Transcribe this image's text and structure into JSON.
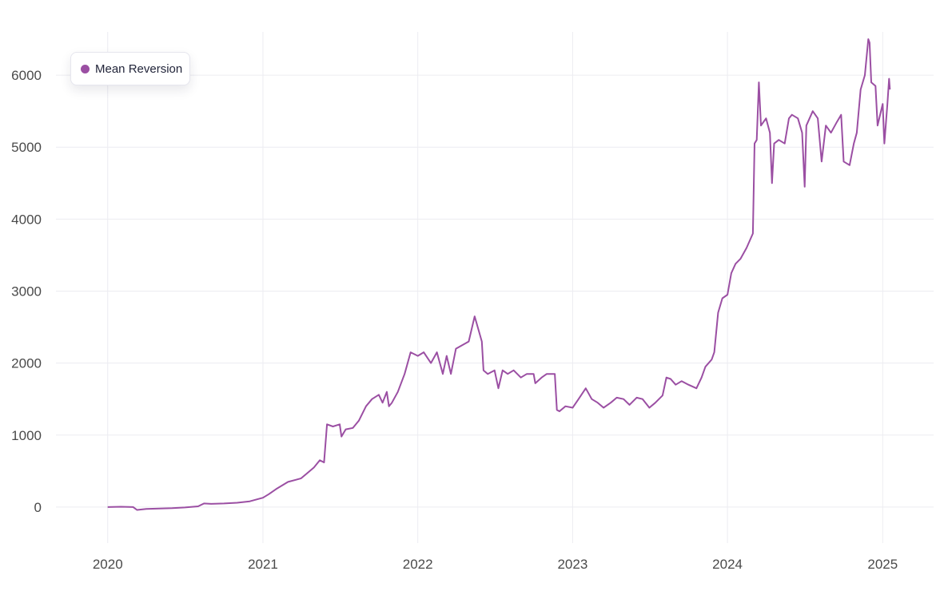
{
  "chart_data": {
    "type": "line",
    "title": "",
    "xlabel": "",
    "ylabel": "",
    "x_ticks": [
      "2020",
      "2021",
      "2022",
      "2023",
      "2024",
      "2025"
    ],
    "y_ticks": [
      0,
      1000,
      2000,
      3000,
      4000,
      5000,
      6000
    ],
    "xlim": [
      "2019-09-01",
      "2025-05-01"
    ],
    "ylim": [
      -500,
      6600
    ],
    "grid": true,
    "legend_position": "top-left",
    "series": [
      {
        "name": "Mean Reversion",
        "color": "#9b4fa3",
        "points": [
          [
            "2020-01-01",
            0
          ],
          [
            "2020-02-01",
            5
          ],
          [
            "2020-03-01",
            0
          ],
          [
            "2020-03-10",
            -40
          ],
          [
            "2020-04-01",
            -25
          ],
          [
            "2020-05-01",
            -20
          ],
          [
            "2020-06-01",
            -15
          ],
          [
            "2020-07-01",
            -5
          ],
          [
            "2020-08-01",
            10
          ],
          [
            "2020-08-15",
            50
          ],
          [
            "2020-09-01",
            45
          ],
          [
            "2020-10-01",
            50
          ],
          [
            "2020-11-01",
            60
          ],
          [
            "2020-12-01",
            80
          ],
          [
            "2021-01-01",
            130
          ],
          [
            "2021-01-15",
            180
          ],
          [
            "2021-02-01",
            250
          ],
          [
            "2021-03-01",
            350
          ],
          [
            "2021-03-20",
            380
          ],
          [
            "2021-04-01",
            400
          ],
          [
            "2021-05-01",
            550
          ],
          [
            "2021-05-15",
            650
          ],
          [
            "2021-05-25",
            620
          ],
          [
            "2021-06-01",
            1150
          ],
          [
            "2021-06-15",
            1120
          ],
          [
            "2021-07-01",
            1150
          ],
          [
            "2021-07-05",
            980
          ],
          [
            "2021-07-15",
            1080
          ],
          [
            "2021-08-01",
            1100
          ],
          [
            "2021-08-15",
            1200
          ],
          [
            "2021-09-01",
            1400
          ],
          [
            "2021-09-15",
            1500
          ],
          [
            "2021-10-01",
            1560
          ],
          [
            "2021-10-10",
            1450
          ],
          [
            "2021-10-20",
            1600
          ],
          [
            "2021-10-25",
            1400
          ],
          [
            "2021-11-01",
            1450
          ],
          [
            "2021-11-15",
            1600
          ],
          [
            "2021-12-01",
            1850
          ],
          [
            "2021-12-15",
            2150
          ],
          [
            "2022-01-01",
            2100
          ],
          [
            "2022-01-15",
            2150
          ],
          [
            "2022-02-01",
            2000
          ],
          [
            "2022-02-15",
            2150
          ],
          [
            "2022-03-01",
            1850
          ],
          [
            "2022-03-10",
            2100
          ],
          [
            "2022-03-20",
            1850
          ],
          [
            "2022-04-01",
            2200
          ],
          [
            "2022-05-01",
            2300
          ],
          [
            "2022-05-15",
            2650
          ],
          [
            "2022-05-20",
            2550
          ],
          [
            "2022-06-01",
            2300
          ],
          [
            "2022-06-05",
            1900
          ],
          [
            "2022-06-15",
            1850
          ],
          [
            "2022-07-01",
            1900
          ],
          [
            "2022-07-10",
            1650
          ],
          [
            "2022-07-20",
            1900
          ],
          [
            "2022-08-01",
            1850
          ],
          [
            "2022-08-15",
            1900
          ],
          [
            "2022-09-01",
            1800
          ],
          [
            "2022-09-15",
            1850
          ],
          [
            "2022-10-01",
            1850
          ],
          [
            "2022-10-05",
            1720
          ],
          [
            "2022-10-20",
            1800
          ],
          [
            "2022-11-01",
            1850
          ],
          [
            "2022-11-20",
            1850
          ],
          [
            "2022-11-25",
            1350
          ],
          [
            "2022-12-01",
            1330
          ],
          [
            "2022-12-15",
            1400
          ],
          [
            "2023-01-01",
            1380
          ],
          [
            "2023-01-15",
            1500
          ],
          [
            "2023-02-01",
            1650
          ],
          [
            "2023-02-15",
            1500
          ],
          [
            "2023-03-01",
            1450
          ],
          [
            "2023-03-15",
            1380
          ],
          [
            "2023-04-01",
            1450
          ],
          [
            "2023-04-15",
            1520
          ],
          [
            "2023-05-01",
            1500
          ],
          [
            "2023-05-15",
            1420
          ],
          [
            "2023-06-01",
            1520
          ],
          [
            "2023-06-15",
            1500
          ],
          [
            "2023-07-01",
            1380
          ],
          [
            "2023-07-15",
            1450
          ],
          [
            "2023-08-01",
            1550
          ],
          [
            "2023-08-10",
            1800
          ],
          [
            "2023-08-20",
            1780
          ],
          [
            "2023-09-01",
            1700
          ],
          [
            "2023-09-15",
            1750
          ],
          [
            "2023-10-01",
            1700
          ],
          [
            "2023-10-20",
            1650
          ],
          [
            "2023-11-01",
            1800
          ],
          [
            "2023-11-10",
            1950
          ],
          [
            "2023-11-25",
            2050
          ],
          [
            "2023-12-01",
            2150
          ],
          [
            "2023-12-10",
            2700
          ],
          [
            "2023-12-20",
            2900
          ],
          [
            "2024-01-01",
            2950
          ],
          [
            "2024-01-10",
            3250
          ],
          [
            "2024-01-20",
            3380
          ],
          [
            "2024-02-01",
            3450
          ],
          [
            "2024-02-15",
            3600
          ],
          [
            "2024-03-01",
            3800
          ],
          [
            "2024-03-05",
            5050
          ],
          [
            "2024-03-10",
            5100
          ],
          [
            "2024-03-15",
            5900
          ],
          [
            "2024-03-20",
            5300
          ],
          [
            "2024-04-01",
            5400
          ],
          [
            "2024-04-10",
            5200
          ],
          [
            "2024-04-15",
            4500
          ],
          [
            "2024-04-20",
            5050
          ],
          [
            "2024-05-01",
            5100
          ],
          [
            "2024-05-15",
            5050
          ],
          [
            "2024-05-25",
            5400
          ],
          [
            "2024-06-01",
            5450
          ],
          [
            "2024-06-15",
            5400
          ],
          [
            "2024-06-25",
            5200
          ],
          [
            "2024-07-01",
            4450
          ],
          [
            "2024-07-05",
            5300
          ],
          [
            "2024-07-20",
            5500
          ],
          [
            "2024-08-01",
            5400
          ],
          [
            "2024-08-10",
            4800
          ],
          [
            "2024-08-20",
            5300
          ],
          [
            "2024-09-01",
            5200
          ],
          [
            "2024-09-15",
            5350
          ],
          [
            "2024-09-25",
            5450
          ],
          [
            "2024-10-01",
            4800
          ],
          [
            "2024-10-15",
            4750
          ],
          [
            "2024-10-25",
            5050
          ],
          [
            "2024-11-01",
            5200
          ],
          [
            "2024-11-10",
            5800
          ],
          [
            "2024-11-20",
            6000
          ],
          [
            "2024-11-28",
            6500
          ],
          [
            "2024-12-01",
            6450
          ],
          [
            "2024-12-05",
            5900
          ],
          [
            "2024-12-15",
            5850
          ],
          [
            "2024-12-20",
            5300
          ],
          [
            "2025-01-01",
            5600
          ],
          [
            "2025-01-05",
            5050
          ],
          [
            "2025-01-12",
            5600
          ],
          [
            "2025-01-16",
            5950
          ],
          [
            "2025-01-18",
            5800
          ]
        ]
      }
    ]
  }
}
